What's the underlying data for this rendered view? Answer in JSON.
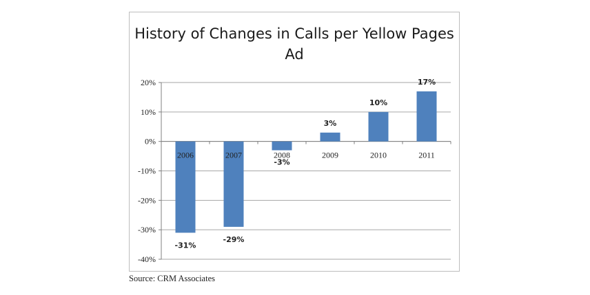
{
  "chart_data": {
    "type": "bar",
    "title": "History of Changes in Calls per Yellow Pages Ad",
    "xlabel": "",
    "ylabel": "",
    "categories": [
      "2006",
      "2007",
      "2008",
      "2009",
      "2010",
      "2011"
    ],
    "values": [
      -31,
      -29,
      -3,
      3,
      10,
      17
    ],
    "data_labels": [
      "-31%",
      "-29%",
      "-3%",
      "3%",
      "10%",
      "17%"
    ],
    "ylim": [
      -40,
      20
    ],
    "yticks": [
      20,
      10,
      0,
      -10,
      -20,
      -30,
      -40
    ],
    "ytick_labels": [
      "20%",
      "10%",
      "0%",
      "-10%",
      "-20%",
      "-30%",
      "-40%"
    ],
    "grid": true,
    "legend": "none",
    "bar_color": "#4f81bd"
  },
  "source": "Source:  CRM Associates"
}
